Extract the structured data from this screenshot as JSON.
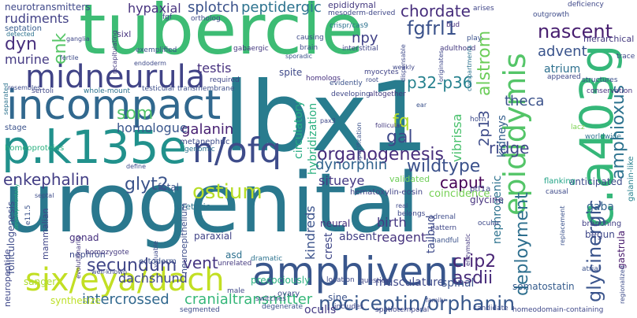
{
  "words": [
    {
      "text": "urogenital",
      "color": "#2a788e"
    },
    {
      "text": "lbx1",
      "color": "#287c8e"
    },
    {
      "text": "tubercle",
      "color": "#3dbc74"
    },
    {
      "text": "incompact",
      "color": "#31688e"
    },
    {
      "text": "p.k135e",
      "color": "#21918c"
    },
    {
      "text": "amphivent",
      "color": "#39568c"
    },
    {
      "text": "midneurula",
      "color": "#414487"
    },
    {
      "text": "c.a403g",
      "color": "#35b779"
    },
    {
      "text": "six/eya/dach",
      "color": "#c2df23"
    },
    {
      "text": "n/ofq",
      "color": "#3e4c8a"
    },
    {
      "text": "nociceptin/orphanin",
      "color": "#38588c"
    },
    {
      "text": "epididymis",
      "color": "#54c568"
    },
    {
      "text": "organogenesis",
      "color": "#472d7b"
    },
    {
      "text": "wildtype",
      "color": "#3b518b"
    },
    {
      "text": "enkephalin",
      "color": "#433e85"
    },
    {
      "text": "glyt2",
      "color": "#3a538b"
    },
    {
      "text": "ostium",
      "color": "#b8de29"
    },
    {
      "text": "dynorphin",
      "color": "#32648e"
    },
    {
      "text": "caput",
      "color": "#440154"
    },
    {
      "text": "secundum",
      "color": "#404688"
    },
    {
      "text": "vent",
      "color": "#453581"
    },
    {
      "text": "crip2",
      "color": "#482475"
    },
    {
      "text": "asdii",
      "color": "#472c7a"
    },
    {
      "text": "fgfrl1",
      "color": "#3b528b"
    },
    {
      "text": "nascent",
      "color": "#481f70"
    },
    {
      "text": "chordate",
      "color": "#472e7c"
    },
    {
      "text": "amphioxus",
      "color": "#2c728e"
    },
    {
      "text": "ridge",
      "color": "#3f4889"
    },
    {
      "text": "deployment",
      "color": "#2e6f8e"
    },
    {
      "text": "glycinergic",
      "color": "#3a548c"
    },
    {
      "text": "alstrom",
      "color": "#6ccd5a"
    },
    {
      "text": "p32-p36",
      "color": "#26818e"
    },
    {
      "text": "galanin",
      "color": "#482173"
    },
    {
      "text": "peptidergic",
      "color": "#2c728e"
    },
    {
      "text": "hypaxial",
      "color": "#46327e"
    },
    {
      "text": "splotch",
      "color": "#3b528b"
    },
    {
      "text": "npy",
      "color": "#414287"
    },
    {
      "text": "testis",
      "color": "#46307e"
    },
    {
      "text": "dachshund",
      "color": "#3f4889"
    },
    {
      "text": "intercrossed",
      "color": "#31688e"
    },
    {
      "text": "cranialtransmitter",
      "color": "#35b779"
    },
    {
      "text": "som",
      "color": "#52c569"
    },
    {
      "text": "homologue",
      "color": "#39568c"
    },
    {
      "text": "fq",
      "color": "#b5de2b"
    },
    {
      "text": "gal",
      "color": "#3e4989"
    },
    {
      "text": "dyn",
      "color": "#472f7d"
    },
    {
      "text": "enk",
      "color": "#56c667"
    },
    {
      "text": "murine",
      "color": "#443a83"
    },
    {
      "text": "rudiments",
      "color": "#424186"
    },
    {
      "text": "septation",
      "color": "#365c8d"
    },
    {
      "text": "neurotransmitters",
      "color": "#3f4889"
    },
    {
      "text": "epididymal",
      "color": "#44397f"
    },
    {
      "text": "advent",
      "color": "#3a548c"
    },
    {
      "text": "atrium",
      "color": "#2d708e"
    },
    {
      "text": "theca",
      "color": "#3b528b"
    },
    {
      "text": "2p13",
      "color": "#3e4c8a"
    },
    {
      "text": "kidneys",
      "color": "#355f8d"
    },
    {
      "text": "vibrissa",
      "color": "#4ac16d"
    },
    {
      "text": "hybridization",
      "color": "#2ab07f"
    },
    {
      "text": "circulatory",
      "color": "#25ab82"
    },
    {
      "text": "situeye",
      "color": "#443983"
    },
    {
      "text": "hematoxylin-eosin",
      "color": "#414487"
    },
    {
      "text": "validated",
      "color": "#6ece58"
    },
    {
      "text": "coincidence",
      "color": "#75d054"
    },
    {
      "text": "kindreds",
      "color": "#3b528b"
    },
    {
      "text": "crest",
      "color": "#3f4788"
    },
    {
      "text": "birth",
      "color": "#453882"
    },
    {
      "text": "tailbud",
      "color": "#3e4a89"
    },
    {
      "text": "nephrogenic",
      "color": "#2c728e"
    },
    {
      "text": "reagent",
      "color": "#46337e"
    },
    {
      "text": "absent",
      "color": "#423f85"
    },
    {
      "text": "musculature",
      "color": "#3e4989"
    },
    {
      "text": "spinal",
      "color": "#3b528b"
    },
    {
      "text": "somatostatin",
      "color": "#365c8d"
    },
    {
      "text": "gastrula",
      "color": "#481b6d"
    },
    {
      "text": "gaba",
      "color": "#33638d"
    },
    {
      "text": "galanin-like",
      "color": "#27808e"
    },
    {
      "text": "anticipated",
      "color": "#3e4c8a"
    },
    {
      "text": "glycine",
      "color": "#46327e"
    },
    {
      "text": "ptf1a",
      "color": "#3f4889"
    },
    {
      "text": "flanking",
      "color": "#20a386"
    },
    {
      "text": "begun",
      "color": "#3f4788"
    },
    {
      "text": "branching",
      "color": "#424186"
    },
    {
      "text": "ureteric",
      "color": "#2c728e"
    },
    {
      "text": "fetal",
      "color": "#3b528b"
    },
    {
      "text": "neuroepithelium",
      "color": "#3d4e8a"
    },
    {
      "text": "gonad",
      "color": "#46307e"
    },
    {
      "text": "nephron",
      "color": "#3e4a89"
    },
    {
      "text": "mammalian",
      "color": "#404688"
    },
    {
      "text": "folliculogenesis",
      "color": "#3e4c8a"
    },
    {
      "text": "paraxial",
      "color": "#414487"
    },
    {
      "text": "asd",
      "color": "#2d708e"
    },
    {
      "text": "precociously",
      "color": "#2ab07f"
    },
    {
      "text": "homozygote",
      "color": "#44397f"
    },
    {
      "text": "ectoderm",
      "color": "#3b528b"
    },
    {
      "text": "neuropeptide",
      "color": "#3f4889"
    },
    {
      "text": "sanger",
      "color": "#addc30"
    },
    {
      "text": "synthesize",
      "color": "#bddf26"
    },
    {
      "text": "ovary",
      "color": "#3e4989"
    },
    {
      "text": "sine",
      "color": "#3b528b"
    },
    {
      "text": "oculis",
      "color": "#443983"
    },
    {
      "text": "neural",
      "color": "#46327e"
    },
    {
      "text": "metanephric",
      "color": "#3e4c8a"
    },
    {
      "text": "genomic",
      "color": "#2c728e"
    },
    {
      "text": "spite",
      "color": "#3e4989"
    },
    {
      "text": "homologs",
      "color": "#46307e"
    },
    {
      "text": "evidently",
      "color": "#3b528b"
    },
    {
      "text": "myocytes",
      "color": "#414487"
    },
    {
      "text": "developing",
      "color": "#3f4788"
    },
    {
      "text": "altogether",
      "color": "#44397f"
    },
    {
      "text": "testicular transmembrane",
      "color": "#3d4e8a"
    },
    {
      "text": "sertoli",
      "color": "#3f4889"
    },
    {
      "text": "whole-mount",
      "color": "#2c728e"
    },
    {
      "text": "required",
      "color": "#3f4788"
    },
    {
      "text": "brain",
      "color": "#3e4c8a"
    },
    {
      "text": "interstitial",
      "color": "#404688"
    },
    {
      "text": "causing",
      "color": "#3e4a89"
    },
    {
      "text": "adulthood",
      "color": "#44397f"
    },
    {
      "text": "bud",
      "color": "#46327e"
    },
    {
      "text": "play",
      "color": "#3b528b"
    },
    {
      "text": "deficiency",
      "color": "#3f4889"
    },
    {
      "text": "outgrowth",
      "color": "#3e4c8a"
    },
    {
      "text": "hierarchical",
      "color": "#44397f"
    },
    {
      "text": "arises",
      "color": "#404688"
    },
    {
      "text": "trace",
      "color": "#3f4788"
    },
    {
      "text": "structures",
      "color": "#3b528b"
    },
    {
      "text": "appeared",
      "color": "#3f4889"
    },
    {
      "text": "conservation",
      "color": "#46327e"
    },
    {
      "text": "horn",
      "color": "#3e4c8a"
    },
    {
      "text": "worldwide",
      "color": "#2c728e"
    },
    {
      "text": "lacz",
      "color": "#7ad151"
    },
    {
      "text": "causal",
      "color": "#3e4a89"
    },
    {
      "text": "replacement",
      "color": "#3b528b"
    },
    {
      "text": "homeodomain-containing",
      "color": "#3f4889"
    },
    {
      "text": "candidate",
      "color": "#3e4c8a"
    },
    {
      "text": "spatiotemporal",
      "color": "#404688"
    },
    {
      "text": "includes",
      "color": "#3f4788"
    },
    {
      "text": "switches",
      "color": "#3e4989"
    },
    {
      "text": "degenerate",
      "color": "#3b528b"
    },
    {
      "text": "segmented",
      "color": "#3e4c8a"
    },
    {
      "text": "male",
      "color": "#3f4889"
    },
    {
      "text": "dramatic",
      "color": "#2c728e"
    },
    {
      "text": "unrelated",
      "color": "#44397f"
    },
    {
      "text": "location",
      "color": "#3e4a89"
    },
    {
      "text": "question",
      "color": "#404688"
    },
    {
      "text": "handful",
      "color": "#3b528b"
    },
    {
      "text": "pattern",
      "color": "#3f4788"
    },
    {
      "text": "adrenal",
      "color": "#3e4c8a"
    },
    {
      "text": "belongs",
      "color": "#3f4889"
    },
    {
      "text": "enzymatic",
      "color": "#44397f"
    },
    {
      "text": "ocular",
      "color": "#3e4989"
    },
    {
      "text": "atrial",
      "color": "#3b528b"
    },
    {
      "text": "regionalized",
      "color": "#3e4c8a"
    },
    {
      "text": "homeoproteins",
      "color": "#2ab07f"
    },
    {
      "text": "stage",
      "color": "#3b528b"
    },
    {
      "text": "sixl",
      "color": "#46327e"
    },
    {
      "text": "fgf",
      "color": "#3f4889"
    },
    {
      "text": "ortholog",
      "color": "#3e4c8a"
    },
    {
      "text": "mesoderm-derived",
      "color": "#3f4788"
    },
    {
      "text": "crispr/cas9",
      "color": "#2c728e"
    },
    {
      "text": "gabaergic",
      "color": "#44397f"
    },
    {
      "text": "sporadic",
      "color": "#3b528b"
    },
    {
      "text": "dispensable",
      "color": "#3e4a89"
    },
    {
      "text": "originates",
      "color": "#3f4889"
    },
    {
      "text": "compartments",
      "color": "#2c728e"
    },
    {
      "text": "fertile",
      "color": "#3e4c8a"
    },
    {
      "text": "ganglia",
      "color": "#3f4788"
    },
    {
      "text": "detected",
      "color": "#2c728e"
    },
    {
      "text": "recapitulating",
      "color": "#44397f"
    },
    {
      "text": "exemplified",
      "color": "#3b528b"
    },
    {
      "text": "endoderm",
      "color": "#3e4a89"
    },
    {
      "text": "resembles",
      "color": "#3e4c8a"
    },
    {
      "text": "separated",
      "color": "#2c728e"
    },
    {
      "text": "pax3",
      "color": "#3f4889"
    },
    {
      "text": "specification",
      "color": "#3b528b"
    },
    {
      "text": "follicular",
      "color": "#44397f"
    },
    {
      "text": "family",
      "color": "#3e4c8a"
    },
    {
      "text": "weakly",
      "color": "#3f4788"
    },
    {
      "text": "root",
      "color": "#3e4989"
    },
    {
      "text": "ear",
      "color": "#3b528b"
    },
    {
      "text": "real",
      "color": "#3f4889"
    },
    {
      "text": "septal",
      "color": "#3e4c8a"
    },
    {
      "text": "developmentally",
      "color": "#2ab07f"
    },
    {
      "text": "e11.5",
      "color": "#3b528b"
    },
    {
      "text": "valuable",
      "color": "#3e4a89"
    },
    {
      "text": "evolutionarily",
      "color": "#44397f"
    },
    {
      "text": "well-known",
      "color": "#3f4889"
    },
    {
      "text": "define",
      "color": "#3e4c8a"
    }
  ]
}
